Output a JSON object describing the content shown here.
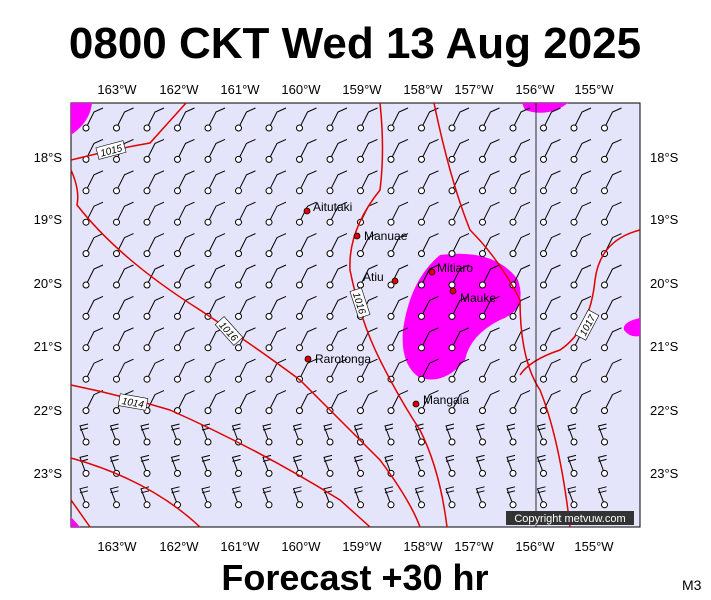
{
  "title": "0800 CKT Wed 13 Aug 2025",
  "footer": "Forecast +30 hr",
  "model": "M3",
  "copyright": "Copyright metvuw.com",
  "lon_labels": [
    "163°W",
    "162°W",
    "161°W",
    "160°W",
    "159°W",
    "158°W",
    "157°W",
    "156°W",
    "155°W"
  ],
  "lat_labels": [
    "18°S",
    "19°S",
    "20°S",
    "21°S",
    "22°S",
    "23°S"
  ],
  "places": [
    "Aitutaki",
    "Manuae",
    "Atiu",
    "Mitiaro",
    "Mauke",
    "Rarotonga",
    "Mangaia"
  ],
  "isobar_labels": [
    "1015",
    "1014",
    "1016",
    "1016",
    "1017"
  ]
}
